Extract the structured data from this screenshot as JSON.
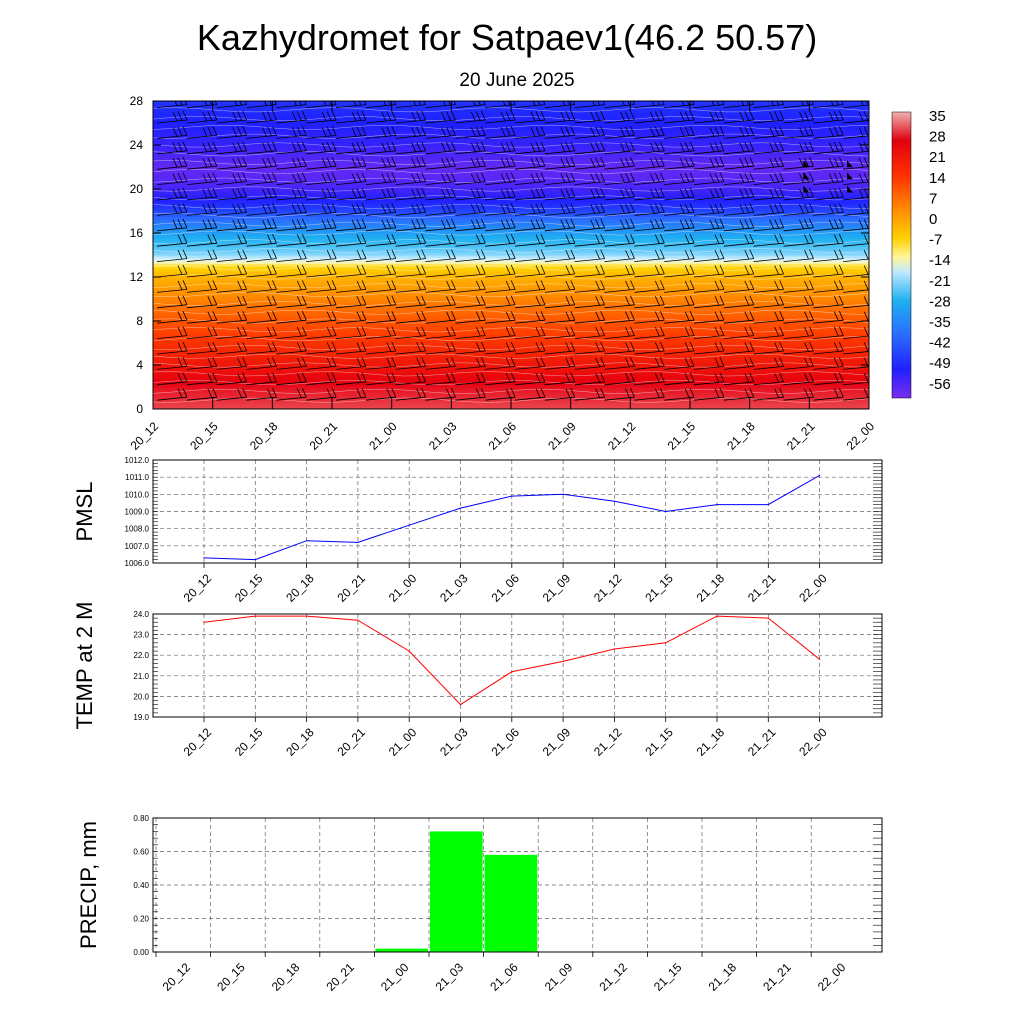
{
  "title": "Kazhydromet for Satpaev1(46.2 50.57)",
  "subtitle": "20 June 2025",
  "time_labels": [
    "20_12",
    "20_15",
    "20_18",
    "20_21",
    "21_00",
    "21_03",
    "21_06",
    "21_09",
    "21_12",
    "21_15",
    "21_18",
    "21_21",
    "22_00"
  ],
  "chart_data": [
    {
      "type": "heatmap",
      "title": "",
      "xlabel": "",
      "ylabel": "",
      "x": [
        "20_12",
        "20_15",
        "20_18",
        "20_21",
        "21_00",
        "21_03",
        "21_06",
        "21_09",
        "21_12",
        "21_15",
        "21_18",
        "21_21",
        "22_00"
      ],
      "y_ticks": [
        0,
        4,
        8,
        12,
        16,
        20,
        24,
        28
      ],
      "ylim": [
        0,
        28
      ],
      "colorbar_labels": [
        35,
        28,
        21,
        14,
        7,
        0,
        -7,
        -14,
        -21,
        -28,
        -35,
        -42,
        -49,
        -56
      ],
      "colorbar_range": [
        -60,
        36
      ],
      "temperature_profile": {
        "height_km": [
          0,
          2,
          4,
          6,
          8,
          10,
          12,
          13,
          13.5,
          14,
          15,
          16,
          17,
          18,
          19,
          20,
          21,
          22,
          23,
          24,
          26,
          28
        ],
        "value": [
          30,
          27,
          22,
          17,
          12,
          6,
          0,
          -5,
          -12,
          -18,
          -28,
          -35,
          -42,
          -48,
          -52,
          -55,
          -57,
          -58,
          -56,
          -54,
          -52,
          -50
        ]
      },
      "wind_barbs": true,
      "grid": false
    },
    {
      "type": "line",
      "title": "",
      "xlabel": "",
      "ylabel": "PMSL",
      "ylim": [
        1006.0,
        1012.0
      ],
      "y_ticks": [
        "1006.0",
        "1007.0",
        "1008.0",
        "1009.0",
        "1010.0",
        "1011.0",
        "1012.0"
      ],
      "x": [
        "20_12",
        "20_15",
        "20_18",
        "20_21",
        "21_00",
        "21_03",
        "21_06",
        "21_09",
        "21_12",
        "21_15",
        "21_18",
        "21_21",
        "22_00"
      ],
      "values": [
        1006.3,
        1006.2,
        1007.3,
        1007.2,
        1008.2,
        1009.2,
        1009.9,
        1010.0,
        1009.6,
        1009.0,
        1009.4,
        1009.4,
        1011.1
      ],
      "color": "#0000ff",
      "grid": true
    },
    {
      "type": "line",
      "title": "",
      "xlabel": "",
      "ylabel": "TEMP at 2 M",
      "ylim": [
        19.0,
        24.0
      ],
      "y_ticks": [
        "19.0",
        "20.0",
        "21.0",
        "22.0",
        "23.0",
        "24.0"
      ],
      "x": [
        "20_12",
        "20_15",
        "20_18",
        "20_21",
        "21_00",
        "21_03",
        "21_06",
        "21_09",
        "21_12",
        "21_15",
        "21_18",
        "21_21",
        "22_00"
      ],
      "values": [
        23.6,
        23.9,
        23.9,
        23.7,
        22.2,
        19.6,
        21.2,
        21.7,
        22.3,
        22.6,
        23.9,
        23.8,
        21.8
      ],
      "color": "#ff0000",
      "grid": true
    },
    {
      "type": "bar",
      "title": "",
      "xlabel": "",
      "ylabel": "PRECIP, mm",
      "ylim": [
        0.0,
        0.8
      ],
      "y_ticks": [
        "0.00",
        "0.20",
        "0.40",
        "0.60",
        "0.80"
      ],
      "categories": [
        "20_12",
        "20_15",
        "20_18",
        "20_21",
        "21_00",
        "21_03",
        "21_06",
        "21_09",
        "21_12",
        "21_15",
        "21_18",
        "21_21",
        "22_00"
      ],
      "values": [
        0,
        0,
        0,
        0,
        0.02,
        0.72,
        0.58,
        0,
        0,
        0,
        0,
        0,
        0
      ],
      "color": "#00ff00",
      "grid": true
    }
  ]
}
